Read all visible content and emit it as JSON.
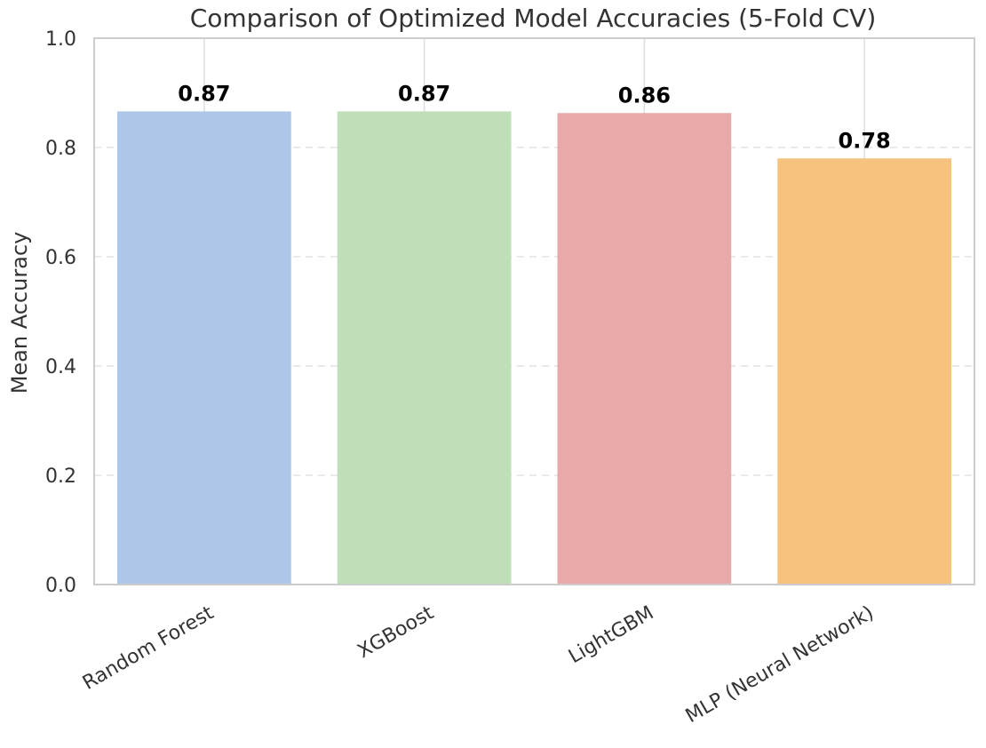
{
  "chart_data": {
    "type": "bar",
    "title": "Comparison of Optimized Model Accuracies (5-Fold CV)",
    "xlabel": "",
    "ylabel": "Mean Accuracy",
    "ylim": [
      0,
      1.0
    ],
    "yticks": [
      "0.0",
      "0.2",
      "0.4",
      "0.6",
      "0.8",
      "1.0"
    ],
    "grid": true,
    "categories": [
      "Random Forest",
      "XGBoost",
      "LightGBM",
      "MLP (Neural Network)"
    ],
    "values": [
      0.866,
      0.866,
      0.863,
      0.78
    ],
    "value_labels": [
      "0.87",
      "0.87",
      "0.86",
      "0.78"
    ],
    "colors": [
      "#aec7e8",
      "#bfdfb9",
      "#e8a9a9",
      "#f5c27f"
    ]
  }
}
